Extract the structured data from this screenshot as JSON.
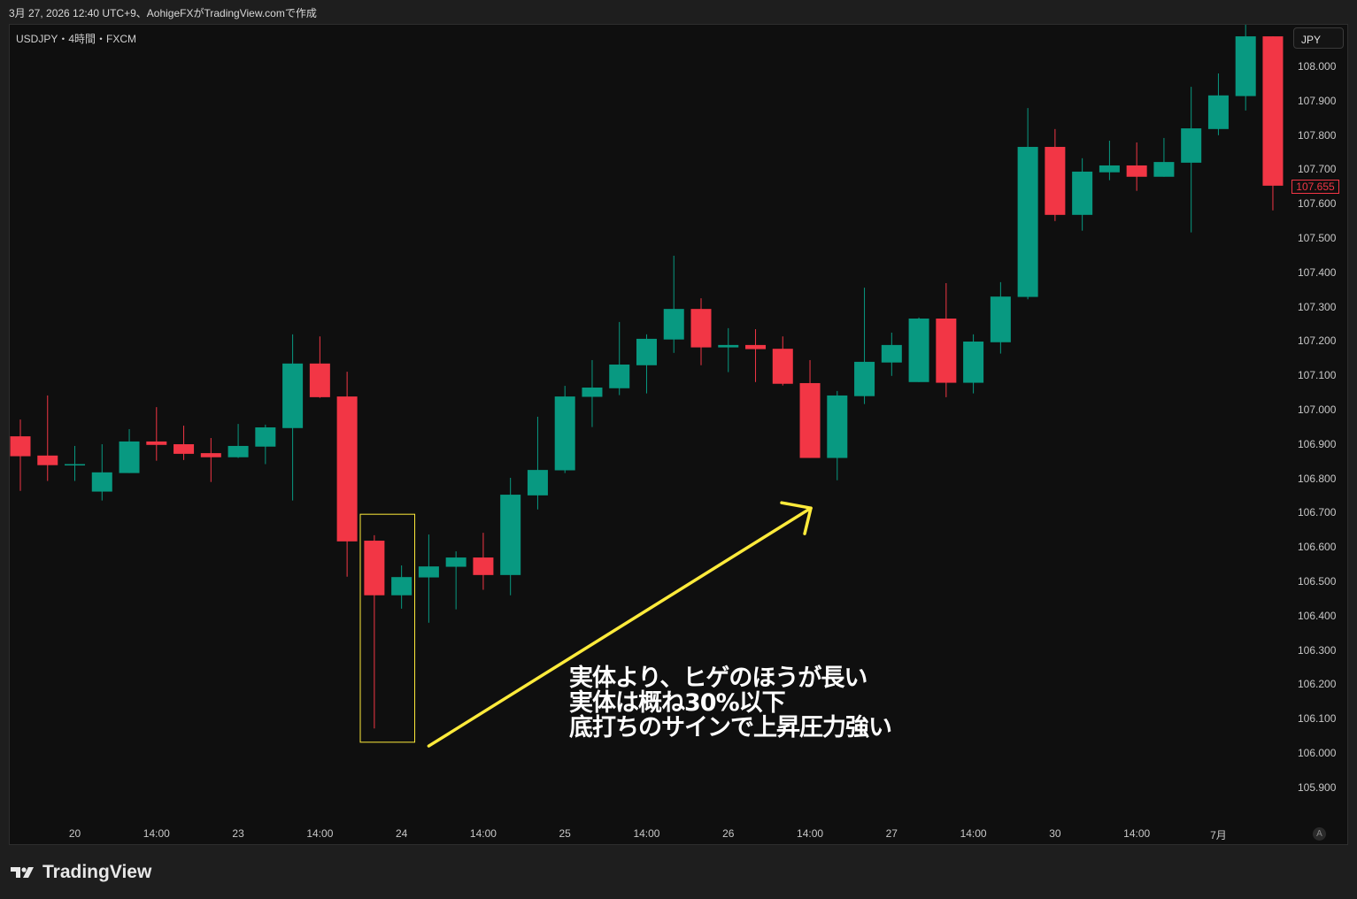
{
  "header": {
    "caption": "3月 27, 2026 12:40 UTC+9、AohigeFXがTradingView.comで作成"
  },
  "chart_header": {
    "symbol": "USDJPY・4時間・FXCM",
    "currency": "JPY"
  },
  "footer": {
    "logo_text": "TradingView",
    "auto_scale_label": "A"
  },
  "colors": {
    "up": "#089981",
    "down": "#f23645",
    "background": "#0f0f0f",
    "annotation": "#ffeb3b",
    "text": "#ffffff"
  },
  "annotation_text": [
    "実体より、ヒゲのほうが長い",
    "実体は概ね30%以下",
    "底打ちのサインで上昇圧力強い"
  ],
  "chart_data": {
    "type": "candlestick",
    "title": "USDJPY・4時間・FXCM",
    "ylim": [
      105.85,
      108.13
    ],
    "y_ticks": [
      "108.000",
      "107.900",
      "107.800",
      "107.700",
      "107.600",
      "107.500",
      "107.400",
      "107.300",
      "107.200",
      "107.100",
      "107.000",
      "106.900",
      "106.800",
      "106.700",
      "106.600",
      "106.500",
      "106.400",
      "106.300",
      "106.200",
      "106.100",
      "106.000",
      "105.900"
    ],
    "x_ticks": [
      {
        "index": 2,
        "label": "20"
      },
      {
        "index": 5,
        "label": "14:00"
      },
      {
        "index": 8,
        "label": "23"
      },
      {
        "index": 11,
        "label": "14:00"
      },
      {
        "index": 14,
        "label": "24"
      },
      {
        "index": 17,
        "label": "14:00"
      },
      {
        "index": 20,
        "label": "25"
      },
      {
        "index": 23,
        "label": "14:00"
      },
      {
        "index": 26,
        "label": "26"
      },
      {
        "index": 29,
        "label": "14:00"
      },
      {
        "index": 32,
        "label": "27"
      },
      {
        "index": 35,
        "label": "14:00"
      },
      {
        "index": 38,
        "label": "30"
      },
      {
        "index": 41,
        "label": "14:00"
      },
      {
        "index": 44,
        "label": "7月"
      }
    ],
    "last_price": "107.655",
    "grid": false,
    "candles": [
      [
        106.925,
        106.974,
        106.766,
        106.867
      ],
      [
        106.869,
        107.044,
        106.795,
        106.841
      ],
      [
        106.843,
        106.897,
        106.795,
        106.844
      ],
      [
        106.764,
        106.902,
        106.738,
        106.82
      ],
      [
        106.818,
        106.946,
        106.818,
        106.91
      ],
      [
        106.91,
        107.01,
        106.854,
        106.9
      ],
      [
        106.902,
        106.956,
        106.856,
        106.874
      ],
      [
        106.876,
        106.92,
        106.792,
        106.864
      ],
      [
        106.864,
        106.961,
        106.862,
        106.897
      ],
      [
        106.895,
        106.959,
        106.844,
        106.951
      ],
      [
        106.949,
        107.222,
        106.738,
        107.137
      ],
      [
        107.137,
        107.216,
        107.037,
        107.039
      ],
      [
        107.041,
        107.113,
        106.516,
        106.619
      ],
      [
        106.621,
        106.637,
        106.074,
        106.462
      ],
      [
        106.462,
        106.549,
        106.423,
        106.515
      ],
      [
        106.514,
        106.639,
        106.382,
        106.546
      ],
      [
        106.545,
        106.59,
        106.421,
        106.572
      ],
      [
        106.572,
        106.644,
        106.478,
        106.521
      ],
      [
        106.521,
        106.804,
        106.462,
        106.755
      ],
      [
        106.753,
        106.982,
        106.712,
        106.827
      ],
      [
        106.826,
        107.072,
        106.818,
        107.041
      ],
      [
        107.04,
        107.147,
        106.952,
        107.067
      ],
      [
        107.065,
        107.258,
        107.045,
        107.134
      ],
      [
        107.132,
        107.222,
        107.05,
        107.209
      ],
      [
        107.207,
        107.451,
        107.168,
        107.296
      ],
      [
        107.296,
        107.327,
        107.132,
        107.184
      ],
      [
        107.184,
        107.24,
        107.112,
        107.191
      ],
      [
        107.191,
        107.237,
        107.083,
        107.179
      ],
      [
        107.18,
        107.216,
        107.073,
        107.078
      ],
      [
        107.08,
        107.147,
        106.862,
        106.862
      ],
      [
        106.862,
        107.057,
        106.797,
        107.044
      ],
      [
        107.042,
        107.358,
        107.019,
        107.142
      ],
      [
        107.14,
        107.227,
        107.101,
        107.191
      ],
      [
        107.083,
        107.271,
        107.083,
        107.268
      ],
      [
        107.268,
        107.371,
        107.039,
        107.081
      ],
      [
        107.081,
        107.222,
        107.05,
        107.201
      ],
      [
        107.199,
        107.374,
        107.166,
        107.332
      ],
      [
        107.331,
        107.881,
        107.324,
        107.768
      ],
      [
        107.768,
        107.82,
        107.552,
        107.57
      ],
      [
        107.57,
        107.735,
        107.524,
        107.696
      ],
      [
        107.694,
        107.786,
        107.671,
        107.714
      ],
      [
        107.714,
        107.781,
        107.64,
        107.681
      ],
      [
        107.681,
        107.794,
        107.681,
        107.724
      ],
      [
        107.722,
        107.943,
        107.519,
        107.822
      ],
      [
        107.82,
        107.982,
        107.802,
        107.918
      ],
      [
        107.916,
        108.126,
        107.874,
        108.09
      ],
      [
        108.09,
        108.09,
        107.583,
        107.655
      ]
    ],
    "candle_fields": [
      "open",
      "high",
      "low",
      "close"
    ],
    "annotations": {
      "highlight_box": {
        "index_from": 12.5,
        "index_to": 14.5,
        "price_top": 106.698,
        "price_bottom": 106.034
      },
      "arrow": {
        "from": {
          "index": 15,
          "price": 106.023
        },
        "to": {
          "index": 29,
          "price": 106.716
        }
      }
    }
  }
}
